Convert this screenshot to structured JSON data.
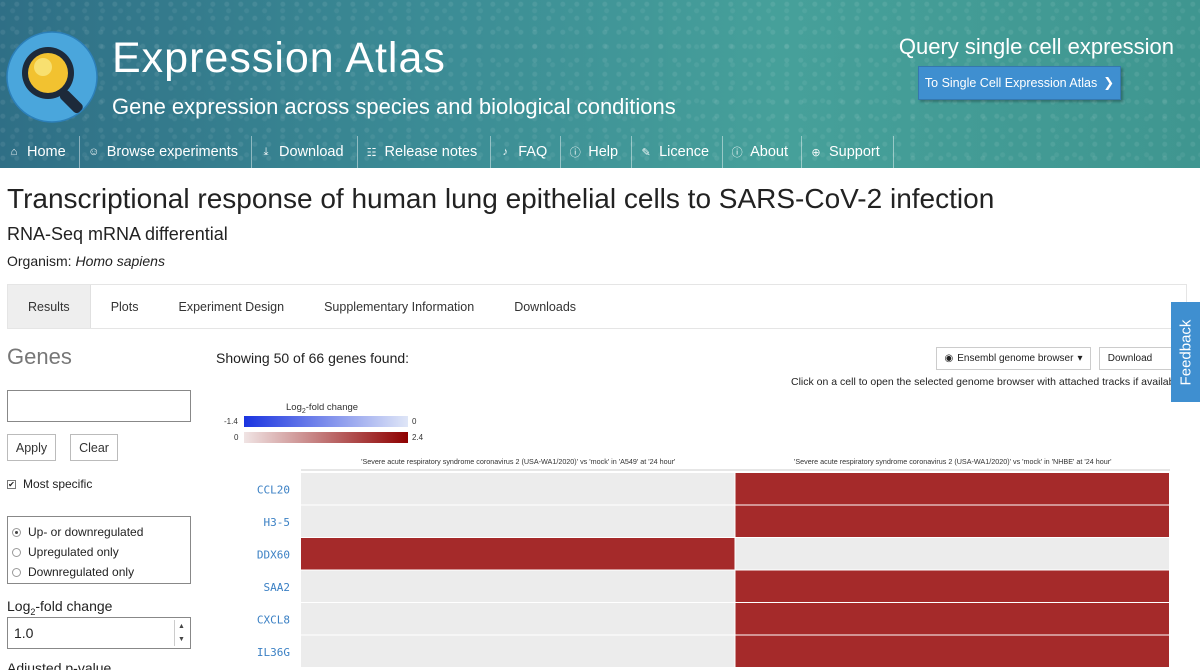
{
  "header": {
    "title": "Expression Atlas",
    "subtitle": "Gene expression across species and biological conditions",
    "query_title": "Query single cell expression",
    "sc_button_label": "To Single Cell Expression Atlas",
    "background_color": "#3b8b95",
    "nav": [
      {
        "label": "Home",
        "icon": "home-icon"
      },
      {
        "label": "Browse experiments",
        "icon": "user-icon"
      },
      {
        "label": "Download",
        "icon": "download-icon"
      },
      {
        "label": "Release notes",
        "icon": "notes-icon"
      },
      {
        "label": "FAQ",
        "icon": "faq-icon"
      },
      {
        "label": "Help",
        "icon": "help-icon"
      },
      {
        "label": "Licence",
        "icon": "licence-icon"
      },
      {
        "label": "About",
        "icon": "info-icon"
      },
      {
        "label": "Support",
        "icon": "support-icon"
      }
    ]
  },
  "experiment": {
    "title": "Transcriptional response of human lung epithelial cells to SARS-CoV-2 infection",
    "type": "RNA-Seq mRNA differential",
    "organism_label": "Organism:",
    "organism": "Homo sapiens"
  },
  "tabs": [
    {
      "label": "Results",
      "active": true
    },
    {
      "label": "Plots",
      "active": false
    },
    {
      "label": "Experiment Design",
      "active": false
    },
    {
      "label": "Supplementary Information",
      "active": false
    },
    {
      "label": "Downloads",
      "active": false
    }
  ],
  "sidebar": {
    "genes_heading": "Genes",
    "gene_input_value": "",
    "apply_label": "Apply",
    "clear_label": "Clear",
    "most_specific_label": "Most specific",
    "most_specific_checked": true,
    "regulation_options": [
      {
        "label": "Up- or downregulated",
        "selected": true
      },
      {
        "label": "Upregulated only",
        "selected": false
      },
      {
        "label": "Downregulated only",
        "selected": false
      }
    ],
    "fold_label_prefix": "Log",
    "fold_label_sub": "2",
    "fold_label_suffix": "-fold change",
    "fold_value": "1.0",
    "pvalue_label": "Adjusted p-value"
  },
  "results": {
    "showing_text": "Showing 50 of 66 genes found:",
    "browser_select_label": "Ensembl genome browser",
    "download_label": "Download",
    "click_hint": "Click on a cell to open the selected genome browser with attached tracks if available",
    "feedback_label": "Feedback"
  },
  "legend": {
    "title_prefix": "Log",
    "title_sub": "2",
    "title_suffix": "-fold change",
    "down_min": "-1.4",
    "down_max": "0",
    "up_min": "0",
    "up_max": "2.4",
    "down_color": "#1a34e0",
    "up_color": "#8e0000"
  },
  "heatmap": {
    "columns": [
      "'Severe acute respiratory syndrome coronavirus 2 (USA-WA1/2020)' vs 'mock' in 'A549' at '24 hour'",
      "'Severe acute respiratory syndrome coronavirus 2 (USA-WA1/2020)' vs 'mock' in 'NHBE' at '24 hour'"
    ],
    "rows": [
      {
        "gene": "CCL20",
        "cells": [
          false,
          true
        ]
      },
      {
        "gene": "H3-5",
        "cells": [
          false,
          true
        ]
      },
      {
        "gene": "DDX60",
        "cells": [
          true,
          false
        ]
      },
      {
        "gene": "SAA2",
        "cells": [
          false,
          true
        ]
      },
      {
        "gene": "CXCL8",
        "cells": [
          false,
          true
        ]
      },
      {
        "gene": "IL36G",
        "cells": [
          false,
          true
        ]
      }
    ],
    "expressed_color": "#a52a2a",
    "empty_color": "#ececec",
    "gene_label_color": "#3b80c4"
  }
}
